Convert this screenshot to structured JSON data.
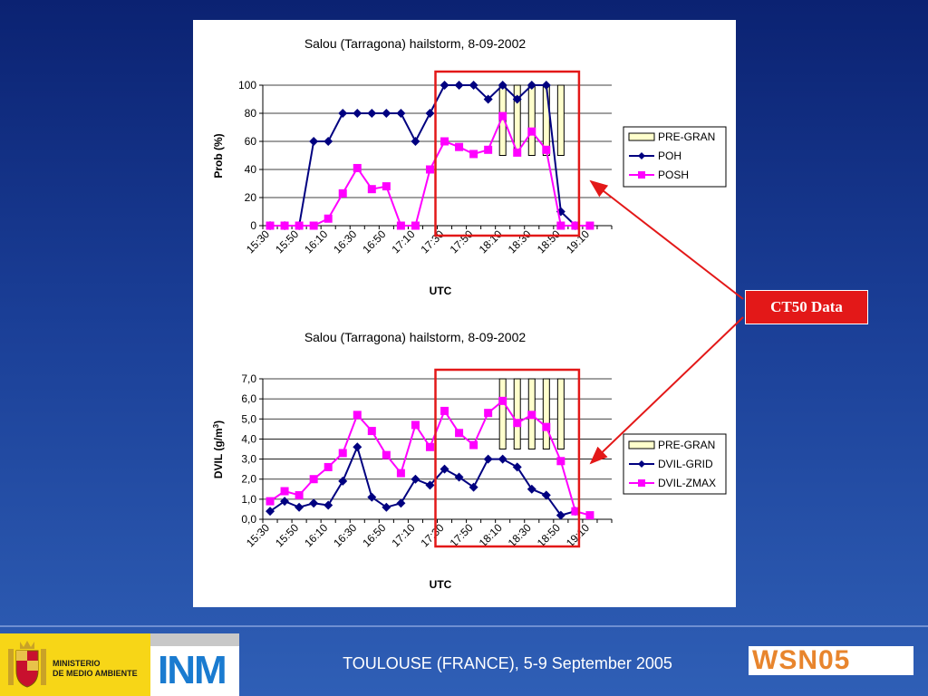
{
  "callout": {
    "label": "CT50 Data"
  },
  "footer": {
    "title": "TOULOUSE (FRANCE), 5-9 September 2005",
    "ministry_line1": "MINISTERIO",
    "ministry_line2": "DE MEDIO AMBIENTE",
    "inm_logo": "INM",
    "wsn_logo": "WSN05"
  },
  "colors": {
    "navy": "#000080",
    "magenta": "#ff00ff",
    "bar_fill": "#ffffcc",
    "highlight": "#e31818"
  },
  "chart_data": [
    {
      "type": "line",
      "title": "Salou (Tarragona) hailstorm, 8-09-2002",
      "xlabel": "UTC",
      "ylabel": "Prob (%)",
      "ylim": [
        0,
        100
      ],
      "yticks": [
        "0",
        "20",
        "40",
        "60",
        "80",
        "100"
      ],
      "tick_labels": [
        "15:30",
        "15:50",
        "16:10",
        "16:30",
        "16:50",
        "17:10",
        "17:30",
        "17:50",
        "18:10",
        "18:30",
        "18:50",
        "19:10"
      ],
      "x": [
        "15:30",
        "15:40",
        "15:50",
        "16:00",
        "16:10",
        "16:20",
        "16:30",
        "16:40",
        "16:50",
        "17:00",
        "17:10",
        "17:20",
        "17:30",
        "17:40",
        "17:50",
        "18:00",
        "18:10",
        "18:20",
        "18:30",
        "18:40",
        "18:50",
        "19:00",
        "19:10",
        "19:20"
      ],
      "legend_position": "right",
      "grid": true,
      "series": [
        {
          "name": "PRE-GRAN",
          "kind": "range-bar",
          "x": [
            "18:10",
            "18:20",
            "18:30",
            "18:40",
            "18:50"
          ],
          "low": [
            50,
            50,
            50,
            50,
            50
          ],
          "high": [
            100,
            100,
            100,
            100,
            100
          ]
        },
        {
          "name": "POH",
          "kind": "line",
          "values": [
            0,
            0,
            0,
            60,
            60,
            80,
            80,
            80,
            80,
            80,
            60,
            80,
            100,
            100,
            100,
            90,
            100,
            90,
            100,
            100,
            10,
            0,
            null,
            null
          ]
        },
        {
          "name": "POSH",
          "kind": "line",
          "values": [
            0,
            0,
            0,
            0,
            5,
            23,
            41,
            26,
            28,
            0,
            0,
            40,
            60,
            56,
            51,
            54,
            78,
            52,
            67,
            54,
            0,
            0,
            0,
            null
          ]
        }
      ]
    },
    {
      "type": "line",
      "title": "Salou (Tarragona) hailstorm, 8-09-2002",
      "xlabel": "UTC",
      "ylabel": "DVIL (g/m3)",
      "ylim": [
        0,
        7
      ],
      "yticks": [
        "0,0",
        "1,0",
        "2,0",
        "3,0",
        "4,0",
        "5,0",
        "6,0",
        "7,0"
      ],
      "tick_labels": [
        "15:30",
        "15:50",
        "16:10",
        "16:30",
        "16:50",
        "17:10",
        "17:30",
        "17:50",
        "18:10",
        "18:30",
        "18:50",
        "19:10"
      ],
      "x": [
        "15:30",
        "15:40",
        "15:50",
        "16:00",
        "16:10",
        "16:20",
        "16:30",
        "16:40",
        "16:50",
        "17:00",
        "17:10",
        "17:20",
        "17:30",
        "17:40",
        "17:50",
        "18:00",
        "18:10",
        "18:20",
        "18:30",
        "18:40",
        "18:50",
        "19:00",
        "19:10",
        "19:20"
      ],
      "legend_position": "right",
      "grid": true,
      "series": [
        {
          "name": "PRE-GRAN",
          "kind": "range-bar",
          "x": [
            "18:10",
            "18:20",
            "18:30",
            "18:40",
            "18:50"
          ],
          "low": [
            3.5,
            3.5,
            3.5,
            3.5,
            3.5
          ],
          "high": [
            7,
            7,
            7,
            7,
            7
          ]
        },
        {
          "name": "DVIL-GRID",
          "kind": "line",
          "values": [
            0.4,
            0.9,
            0.6,
            0.8,
            0.7,
            1.9,
            3.6,
            1.1,
            0.6,
            0.8,
            2.0,
            1.7,
            2.5,
            2.1,
            1.6,
            3.0,
            3.0,
            2.6,
            1.5,
            1.2,
            0.2,
            0.4,
            null,
            null
          ]
        },
        {
          "name": "DVIL-ZMAX",
          "kind": "line",
          "values": [
            0.9,
            1.4,
            1.2,
            2.0,
            2.6,
            3.3,
            5.2,
            4.4,
            3.2,
            2.3,
            4.7,
            3.6,
            5.4,
            4.3,
            3.7,
            5.3,
            5.9,
            4.8,
            5.2,
            4.6,
            2.9,
            0.4,
            0.2,
            null
          ]
        }
      ]
    }
  ]
}
